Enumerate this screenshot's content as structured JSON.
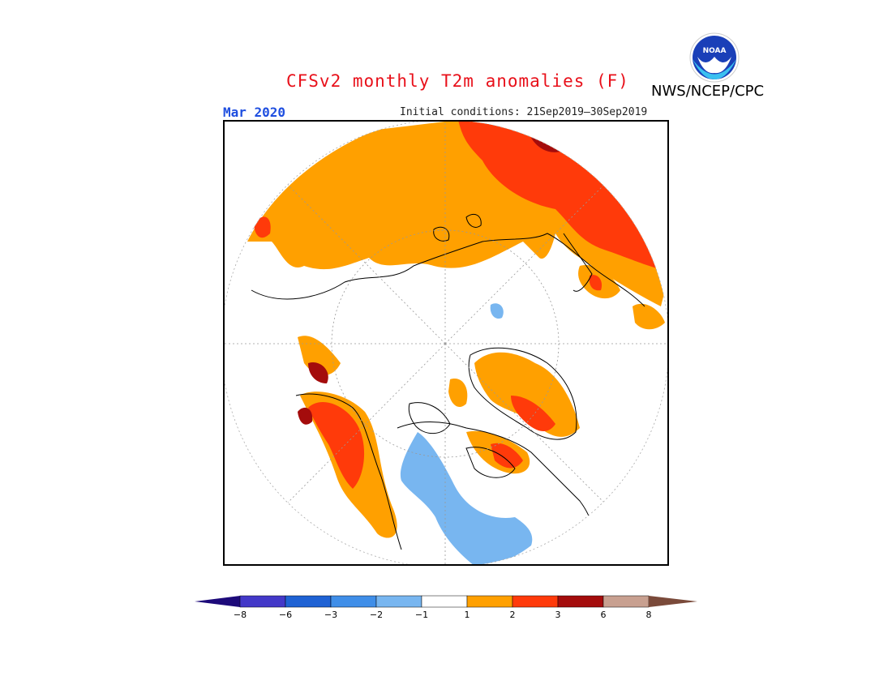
{
  "header": {
    "title": "CFSv2 monthly T2m anomalies (F)",
    "month": "Mar 2020",
    "initial_conditions": "Initial conditions: 21Sep2019–30Sep2019",
    "agency": "NWS/NCEP/CPC",
    "logo_text": "NOAA",
    "logo_icon": "noaa-logo-icon"
  },
  "colorbar": {
    "labels": [
      "−8",
      "−6",
      "−3",
      "−2",
      "−1",
      "1",
      "2",
      "3",
      "6",
      "8"
    ],
    "colors": [
      "#1d0a7a",
      "#4338c8",
      "#1f62d4",
      "#3f8ee8",
      "#78b6f0",
      "#ffffff",
      "#ffa000",
      "#ff3a0a",
      "#a40c0c",
      "#c8a090",
      "#7a4a3a"
    ]
  },
  "map": {
    "projection": "north-polar-stereographic",
    "colors": {
      "warm1": "#ffa000",
      "warm2": "#ff3a0a",
      "warm3": "#a40c0c",
      "cool1": "#78b6f0",
      "land_outline": "#000000",
      "grid": "#999999"
    }
  }
}
